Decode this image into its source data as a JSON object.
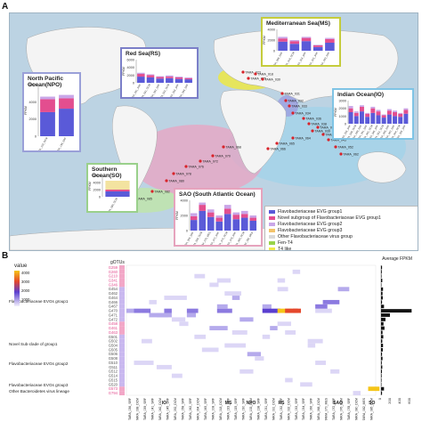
{
  "panel_a": {
    "letter": "A",
    "insets": [
      {
        "key": "ms",
        "title": "Mediterranean Sea(MS)",
        "ylabel": "FPKM",
        "border": "#c5cc3c",
        "ticks": [
          "4000",
          "2000",
          "0"
        ],
        "stations": [
          "TARA_008_SRF",
          "TARA_018_DCM",
          "TARA_023_SRF",
          "TARA_025_SRF",
          "TARA_030_SRF"
        ],
        "values": [
          [
            1700,
            600,
            300
          ],
          [
            1300,
            500,
            200
          ],
          [
            1800,
            600,
            200
          ],
          [
            700,
            300,
            100
          ],
          [
            1500,
            700,
            200
          ]
        ]
      },
      {
        "key": "rs",
        "title": "Red Sea(RS)",
        "ylabel": "FPKM",
        "border": "#7b7fc8",
        "ticks": [
          "6000",
          "4000",
          "2000",
          "0"
        ],
        "stations": [
          "TARA_031_SRF",
          "TARA_031_DCM",
          "TARA_032_SRF",
          "TARA_032_DCM",
          "TARA_033_SRF",
          "TARA_034_SRF"
        ],
        "values": [
          [
            1600,
            700,
            300
          ],
          [
            1400,
            600,
            200
          ],
          [
            1100,
            400,
            200
          ],
          [
            1200,
            400,
            300
          ],
          [
            1000,
            400,
            200
          ],
          [
            900,
            300,
            200
          ]
        ]
      },
      {
        "key": "npo",
        "title": "North Pacific Ocean(NPO)",
        "ylabel": "FPKM",
        "border": "#9aa0d8",
        "ticks": [
          "6000",
          "4000",
          "2000",
          "0"
        ],
        "stations": [
          "TARA_133_DCM",
          "TARA_138_SRF"
        ],
        "values": [
          [
            2800,
            1500,
            300
          ],
          [
            3200,
            1200,
            400
          ]
        ]
      },
      {
        "key": "io",
        "title": "Indian Ocean(IO)",
        "ylabel": "FPKM",
        "border": "#7fc4e5",
        "ticks": [
          "3000",
          "2000",
          "1000",
          "0"
        ],
        "stations": [
          "TARA_036_SRF",
          "TARA_038_DCM",
          "TARA_039_SRF",
          "TARA_041_SRF",
          "TARA_042_DCM",
          "TARA_045_SRF",
          "TARA_052_DCM",
          "TARA_058_SRF",
          "TARA_062_SRF",
          "TARA_064_DCM",
          "TARA_065_SRF"
        ],
        "values": [
          [
            1500,
            500,
            300
          ],
          [
            1000,
            400,
            200
          ],
          [
            1600,
            600,
            200
          ],
          [
            900,
            400,
            100
          ],
          [
            1400,
            600,
            200
          ],
          [
            1100,
            500,
            200
          ],
          [
            800,
            300,
            100
          ],
          [
            1200,
            500,
            200
          ],
          [
            1000,
            500,
            200
          ],
          [
            900,
            400,
            100
          ],
          [
            1300,
            500,
            200
          ]
        ]
      },
      {
        "key": "so",
        "title": "Southern Ocean(SO)",
        "ylabel": "FPKM",
        "border": "#9ad08b",
        "ticks": [
          "6000",
          "4000",
          "2000",
          "0"
        ],
        "stations": [
          "TARA_085_DCM"
        ],
        "values": [
          [
            1500,
            500,
            2500
          ]
        ]
      },
      {
        "key": "sao",
        "title": "SAO (South Atlantic Ocean)",
        "ylabel": "FPKM",
        "border": "#e6a3bd",
        "ticks": [
          "4000",
          "2000",
          "0"
        ],
        "stations": [
          "TARA_066_SRF",
          "TARA_068_DCM",
          "TARA_070_MES",
          "TARA_072_SRF",
          "TARA_076_DCM",
          "TARA_078_SRF",
          "TARA_080_DCM",
          "TARA_082_MES"
        ],
        "values": [
          [
            1400,
            500,
            400
          ],
          [
            2600,
            800,
            300
          ],
          [
            1800,
            600,
            400
          ],
          [
            1200,
            500,
            300
          ],
          [
            2200,
            700,
            500
          ],
          [
            1500,
            600,
            300
          ],
          [
            1700,
            500,
            400
          ],
          [
            1300,
            400,
            300
          ]
        ]
      }
    ],
    "station_labels": [
      "TARA_023",
      "TARA_025",
      "TARA_018",
      "TARA_030",
      "TARA_031",
      "TARA_032",
      "TARA_033",
      "TARA_034",
      "TARA_036",
      "TARA_038",
      "TARA_039",
      "TARA_041",
      "TARA_042",
      "TARA_045",
      "TARA_052",
      "TARA_062",
      "TARA_064",
      "TARA_065",
      "TARA_066",
      "TARA_068",
      "TARA_070",
      "TARA_072",
      "TARA_076",
      "TARA_078",
      "TARA_080",
      "TARA_082",
      "TARA_085",
      "TARA_133",
      "TARA_138"
    ],
    "legend": [
      {
        "label": "Flavobacteriaceae EVG group1",
        "color": "#5a5ad8"
      },
      {
        "label": "Novel subgroup of Flavobacteriaceae EVG group1",
        "color": "#e34e8f"
      },
      {
        "label": "Flavobacteriaceae EVG group2",
        "color": "#c9a6e8"
      },
      {
        "label": "Flavobacteriaceae EVG group3",
        "color": "#f3c36b"
      },
      {
        "label": "Other Flavobacteriaceae virus group",
        "color": "#d9d9d9"
      },
      {
        "label": "Fen-T4",
        "color": "#98d34a"
      },
      {
        "label": "T4 like",
        "color": "#f0e94a"
      },
      {
        "label": "Other novel Bacteroidetes virus lineages",
        "color": "#c6c6c6"
      }
    ]
  },
  "panel_b": {
    "letter": "B",
    "colorbar_title": "value",
    "colorbar_ticks": [
      "4000",
      "3000",
      "2000",
      "1000"
    ],
    "gotus_label": "gOTUs",
    "gotus": [
      "G259",
      "G260",
      "G210",
      "G341",
      "G346",
      "G454",
      "G462",
      "G464",
      "G466",
      "G467",
      "G470",
      "G471",
      "G472",
      "G458",
      "G461",
      "G463",
      "G501",
      "G502",
      "G504",
      "G505",
      "G506",
      "G508",
      "G510",
      "G511",
      "G512",
      "G514",
      "G515",
      "G520",
      "G573",
      "G794"
    ],
    "gotu_colors": [
      "#e34e8f",
      "#e34e8f",
      "#e34e8f",
      "#e34e8f",
      "#e34e8f",
      "#555",
      "#555",
      "#555",
      "#555",
      "#555",
      "#555",
      "#555",
      "#555",
      "#e34e8f",
      "#e34e8f",
      "#e34e8f",
      "#555",
      "#555",
      "#555",
      "#555",
      "#555",
      "#555",
      "#555",
      "#555",
      "#555",
      "#555",
      "#555",
      "#555",
      "#e34e8f",
      "#e34e8f"
    ],
    "group_labels": [
      "Flavobacteriaceae EVGs group1",
      "Novel Sub-clade of group1",
      "Flavobacteriaceae EVGs group2",
      "Flavobacteriaceae EVGs group3",
      "Other Bacteroidetes virus lineage"
    ],
    "regions": [
      "IO",
      "MS",
      "NPO",
      "RS",
      "SAO",
      "SO"
    ],
    "stations": [
      "TARA_036_SRF",
      "TARA_038_DCM",
      "TARA_039_SRF",
      "TARA_041_SRF",
      "TARA_042_DCM",
      "TARA_045_SRF",
      "TARA_052_DCM",
      "TARA_058_SRF",
      "TARA_062_SRF",
      "TARA_064_DCM",
      "TARA_065_SRF",
      "TARA_008_SRF",
      "TARA_018_DCM",
      "TARA_023_SRF",
      "TARA_025_SRF",
      "TARA_030_SRF",
      "TARA_133_DCM",
      "TARA_138_SRF",
      "TARA_031_SRF",
      "TARA_031_DCM",
      "TARA_032_SRF",
      "TARA_032_DCM",
      "TARA_033_SRF",
      "TARA_034_SRF",
      "TARA_066_SRF",
      "TARA_068_DCM",
      "TARA_070_MES",
      "TARA_072_SRF",
      "TARA_076_DCM",
      "TARA_078_SRF",
      "TARA_080_DCM",
      "TARA_082_MES",
      "TARA_085_DCM"
    ],
    "side_title": "Average FPKM",
    "side_ticks": [
      "0",
      "200",
      "400",
      "600"
    ],
    "average_fpkm": [
      20,
      15,
      10,
      25,
      8,
      40,
      30,
      35,
      20,
      60,
      620,
      180,
      90,
      50,
      70,
      30,
      45,
      25,
      40,
      35,
      20,
      30,
      15,
      25,
      18,
      12,
      10,
      8,
      60,
      20
    ]
  },
  "heatmap": {
    "cells": [
      [
        3,
        12,
        18,
        400
      ],
      [
        5,
        20,
        14,
        350
      ],
      [
        8,
        3,
        10,
        300
      ],
      [
        10,
        25,
        22,
        280
      ],
      [
        12,
        15,
        18,
        500
      ],
      [
        5,
        28,
        15,
        600
      ],
      [
        7,
        5,
        30,
        400
      ],
      [
        9,
        18,
        12,
        450
      ],
      [
        10,
        0,
        5,
        700
      ],
      [
        10,
        1,
        8,
        900
      ],
      [
        10,
        2,
        12,
        1200
      ],
      [
        10,
        5,
        10,
        800
      ],
      [
        10,
        8,
        15,
        1100
      ],
      [
        10,
        12,
        20,
        900
      ],
      [
        10,
        18,
        11,
        1500
      ],
      [
        10,
        19,
        14,
        1300
      ],
      [
        10,
        20,
        19,
        4200
      ],
      [
        10,
        21,
        17,
        3500
      ],
      [
        10,
        22,
        11,
        2800
      ],
      [
        11,
        3,
        25,
        700
      ],
      [
        11,
        4,
        20,
        600
      ],
      [
        11,
        8,
        12,
        500
      ],
      [
        9,
        12,
        14,
        600
      ],
      [
        9,
        25,
        16,
        900
      ],
      [
        8,
        26,
        22,
        800
      ],
      [
        12,
        6,
        18,
        300
      ],
      [
        13,
        7,
        12,
        400
      ],
      [
        14,
        11,
        24,
        500
      ],
      [
        15,
        14,
        20,
        300
      ],
      [
        16,
        9,
        15,
        250
      ],
      [
        17,
        2,
        14,
        400
      ],
      [
        18,
        13,
        28,
        350
      ],
      [
        19,
        10,
        22,
        300
      ],
      [
        20,
        16,
        18,
        500
      ],
      [
        21,
        17,
        12,
        300
      ],
      [
        22,
        1,
        26,
        200
      ],
      [
        23,
        4,
        20,
        250
      ],
      [
        24,
        15,
        18,
        300
      ],
      [
        25,
        6,
        14,
        200
      ],
      [
        26,
        21,
        10,
        300
      ],
      [
        27,
        23,
        16,
        250
      ],
      [
        28,
        32,
        15,
        3600
      ],
      [
        29,
        30,
        10,
        300
      ],
      [
        2,
        9,
        14,
        300
      ],
      [
        4,
        11,
        12,
        250
      ],
      [
        6,
        13,
        22,
        350
      ],
      [
        7,
        14,
        8,
        450
      ],
      [
        3,
        20,
        6,
        300
      ],
      [
        1,
        22,
        10,
        250
      ],
      [
        13,
        20,
        18,
        400
      ],
      [
        14,
        19,
        6,
        500
      ],
      [
        15,
        21,
        14,
        350
      ],
      [
        16,
        18,
        10,
        300
      ],
      [
        17,
        24,
        20,
        400
      ],
      [
        18,
        24,
        8,
        300
      ],
      [
        22,
        25,
        14,
        250
      ],
      [
        24,
        27,
        12,
        200
      ]
    ]
  }
}
